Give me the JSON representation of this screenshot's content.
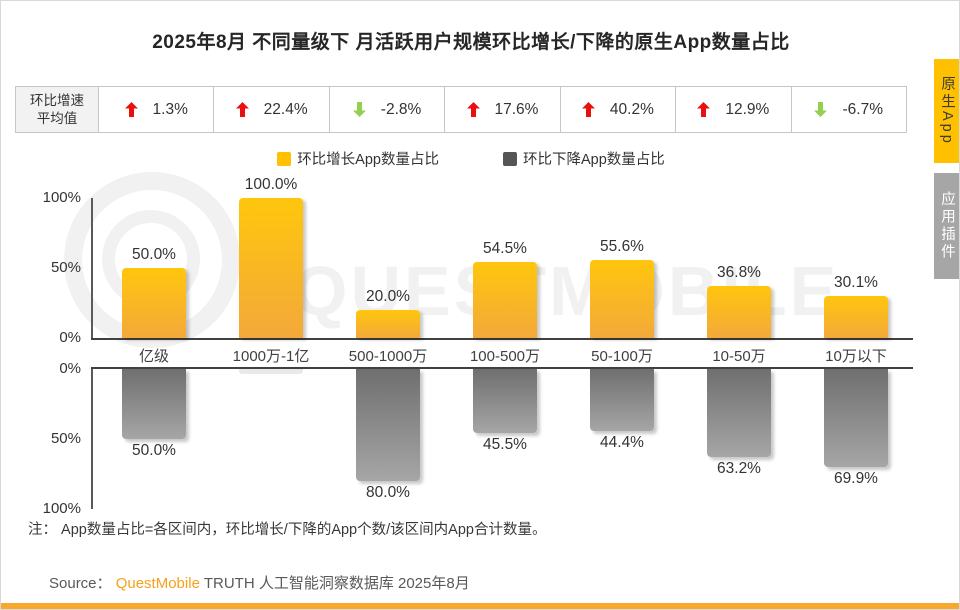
{
  "page": {
    "title": "2025年8月 不同量级下 月活跃用户规模环比增长/下降的原生App数量占比",
    "note": "注： App数量占比=各区间内，环比增长/下降的App个数/该区间内App合计数量。",
    "source_label": "Source：",
    "source_brand": "QuestMobile",
    "source_rest": " TRUTH 人工智能洞察数据库 2025年8月",
    "watermark_text": "QUESTMOBILE",
    "accent_orange": "#FFC000",
    "accent_gray": "#A6A6A6",
    "bottom_strip_color": "#F7A82D"
  },
  "stats_bar": {
    "label_line1": "环比增速",
    "label_line2": "平均值",
    "up_color": "#e81010",
    "down_color": "#92d050",
    "items": [
      {
        "direction": "up",
        "value": "1.3%"
      },
      {
        "direction": "up",
        "value": "22.4%"
      },
      {
        "direction": "down",
        "value": "-2.8%"
      },
      {
        "direction": "up",
        "value": "17.6%"
      },
      {
        "direction": "up",
        "value": "40.2%"
      },
      {
        "direction": "up",
        "value": "12.9%"
      },
      {
        "direction": "down",
        "value": "-6.7%"
      }
    ]
  },
  "legend": {
    "items": [
      {
        "label": "环比增长App数量占比",
        "color": "#FFC000"
      },
      {
        "label": "环比下降App数量占比",
        "color": "#555555"
      }
    ]
  },
  "side_tabs": [
    {
      "label": "原生App",
      "active": true
    },
    {
      "label": "应用插件",
      "active": false
    }
  ],
  "chart_data": {
    "type": "bar",
    "title": "2025年8月 不同量级下 月活跃用户规模环比增长/下降的原生App数量占比",
    "categories": [
      "亿级",
      "1000万-1亿",
      "500-1000万",
      "100-500万",
      "50-100万",
      "10-50万",
      "10万以下"
    ],
    "series": [
      {
        "name": "环比增长App数量占比",
        "orientation": "up",
        "color": "#FFC000",
        "values": [
          50.0,
          100.0,
          20.0,
          54.5,
          55.6,
          36.8,
          30.1
        ]
      },
      {
        "name": "环比下降App数量占比",
        "orientation": "down",
        "color": "#8C8C8C",
        "values": [
          50.0,
          0.0,
          80.0,
          45.5,
          44.4,
          63.2,
          69.9
        ]
      }
    ],
    "growth_rate_avg": [
      "1.3%",
      "22.4%",
      "-2.8%",
      "17.6%",
      "40.2%",
      "12.9%",
      "-6.7%"
    ],
    "yticks_top": [
      "100%",
      "50%",
      "0%"
    ],
    "yticks_bottom": [
      "0%",
      "50%",
      "100%"
    ],
    "ylim": [
      0,
      100
    ],
    "grid": false,
    "legend_position": "top",
    "value_label_format": "one_decimal_percent"
  }
}
